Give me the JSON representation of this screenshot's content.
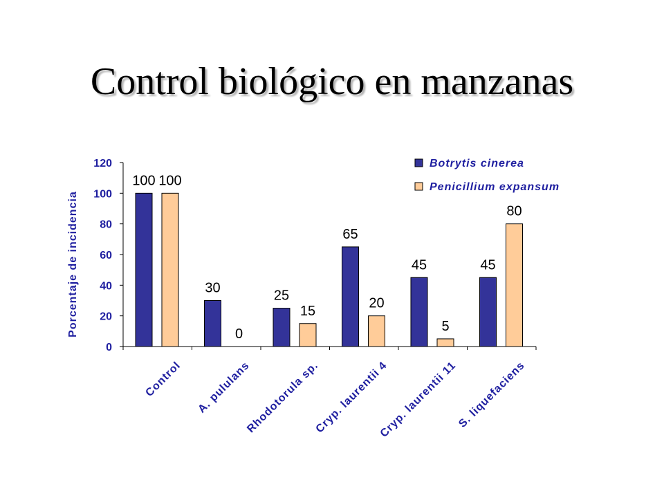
{
  "slide": {
    "title": "Control biológico en manzanas"
  },
  "colors": {
    "series_1": "#333399",
    "series_2": "#ffcc99",
    "axis_text": "#1f1fa0",
    "data_label": "#000000"
  },
  "chart_data": {
    "type": "bar",
    "title": "",
    "xlabel": "",
    "ylabel": "Porcentaje de incidencia",
    "ylim": [
      0,
      120
    ],
    "yticks": [
      0,
      20,
      40,
      60,
      80,
      100,
      120
    ],
    "grid": false,
    "legend_position": "top-right",
    "categories": [
      "Control",
      "A. pululans",
      "Rhodotorula sp.",
      "Cryp. laurentii 4",
      "Cryp. laurentii 11",
      "S. liquefaciens"
    ],
    "series": [
      {
        "name": "Botrytis cinerea",
        "values": [
          100,
          30,
          25,
          65,
          45,
          45
        ]
      },
      {
        "name": "Penicillium expansum",
        "values": [
          100,
          0,
          15,
          20,
          5,
          80
        ]
      }
    ]
  }
}
